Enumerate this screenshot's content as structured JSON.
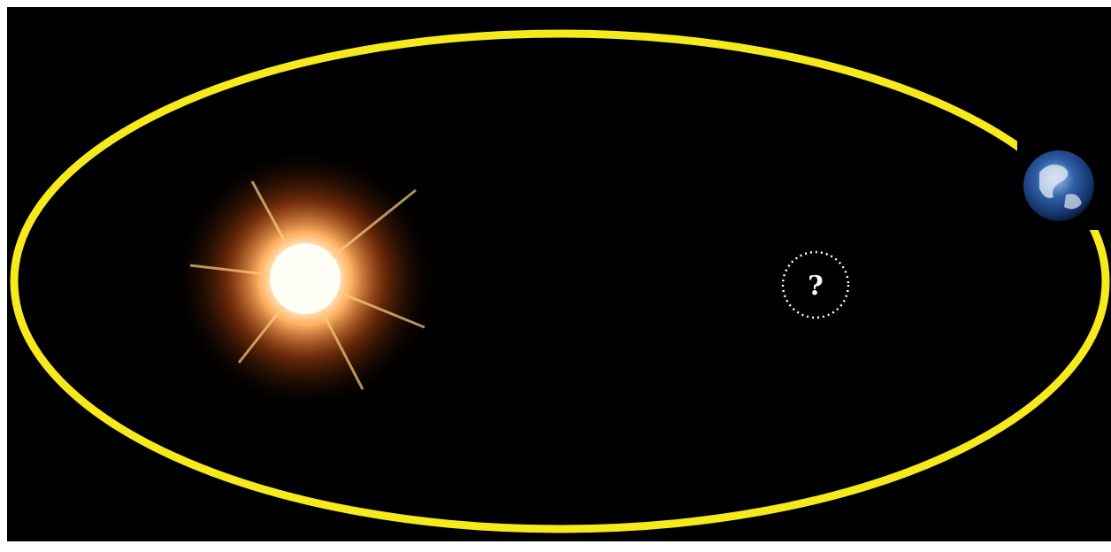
{
  "diagram": {
    "focus_marker": "?"
  }
}
